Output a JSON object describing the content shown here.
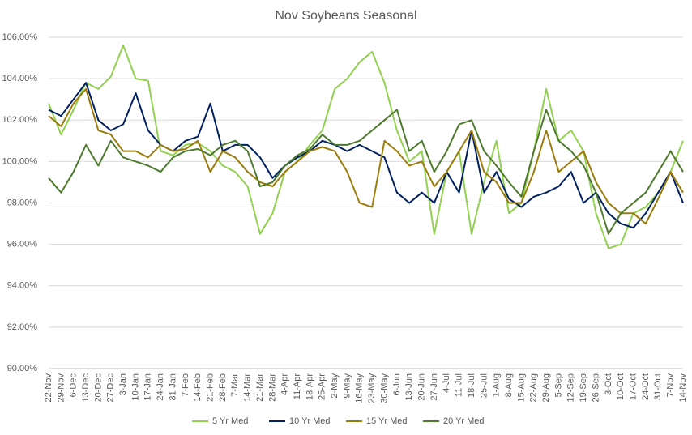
{
  "chart_data": {
    "type": "line",
    "title": "Nov Soybeans Seasonal",
    "categories": [
      "22-Nov",
      "29-Nov",
      "6-Dec",
      "13-Dec",
      "20-Dec",
      "27-Dec",
      "3-Jan",
      "10-Jan",
      "17-Jan",
      "24-Jan",
      "31-Jan",
      "7-Feb",
      "14-Feb",
      "21-Feb",
      "28-Feb",
      "7-Mar",
      "14-Mar",
      "21-Mar",
      "28-Mar",
      "4-Apr",
      "11-Apr",
      "18-Apr",
      "25-Apr",
      "2-May",
      "9-May",
      "16-May",
      "23-May",
      "30-May",
      "6-Jun",
      "13-Jun",
      "20-Jun",
      "27-Jun",
      "4-Jul",
      "11-Jul",
      "18-Jul",
      "25-Jul",
      "1-Aug",
      "8-Aug",
      "15-Aug",
      "22-Aug",
      "29-Aug",
      "5-Sep",
      "12-Sep",
      "19-Sep",
      "26-Sep",
      "3-Oct",
      "10-Oct",
      "17-Oct",
      "24-Oct",
      "31-Oct",
      "7-Nov",
      "14-Nov"
    ],
    "series": [
      {
        "name": "5 Yr Med",
        "color": "#92d050",
        "values": [
          102.8,
          101.3,
          102.5,
          103.8,
          103.5,
          104.1,
          105.6,
          104.0,
          103.9,
          100.5,
          100.3,
          100.8,
          100.9,
          100.5,
          99.8,
          99.5,
          98.8,
          96.5,
          97.5,
          99.5,
          100.0,
          100.8,
          101.5,
          103.5,
          104.0,
          104.8,
          105.3,
          103.8,
          101.5,
          100.0,
          100.5,
          96.5,
          99.5,
          100.5,
          96.5,
          99.0,
          101.0,
          97.5,
          98.0,
          100.5,
          103.5,
          101.0,
          101.5,
          100.5,
          97.5,
          95.8,
          96.0,
          97.5,
          97.8,
          98.5,
          99.5,
          101.0
        ]
      },
      {
        "name": "10 Yr Med",
        "color": "#002060",
        "values": [
          102.5,
          102.2,
          103.0,
          103.8,
          102.0,
          101.5,
          101.8,
          103.3,
          101.5,
          100.8,
          100.5,
          101.0,
          101.2,
          102.8,
          100.5,
          100.8,
          100.8,
          100.2,
          99.2,
          99.8,
          100.2,
          100.5,
          101.0,
          100.8,
          100.5,
          100.8,
          100.5,
          100.2,
          98.5,
          98.0,
          98.5,
          98.0,
          99.5,
          98.5,
          101.5,
          98.5,
          99.5,
          98.2,
          97.8,
          98.3,
          98.5,
          98.8,
          99.5,
          98.0,
          98.5,
          97.5,
          97.0,
          96.8,
          97.5,
          98.5,
          99.5,
          98.0
        ]
      },
      {
        "name": "15 Yr Med",
        "color": "#9c7c0c",
        "values": [
          102.2,
          101.7,
          102.8,
          103.5,
          101.5,
          101.3,
          100.5,
          100.5,
          100.2,
          100.8,
          100.5,
          100.6,
          101.0,
          99.5,
          100.5,
          100.2,
          99.5,
          99.0,
          98.8,
          99.5,
          100.0,
          100.5,
          100.7,
          100.5,
          99.5,
          98.0,
          97.8,
          101.0,
          100.5,
          99.8,
          100.0,
          98.8,
          99.5,
          100.5,
          101.5,
          99.5,
          99.0,
          98.0,
          98.0,
          99.5,
          101.5,
          99.5,
          100.0,
          100.5,
          99.0,
          98.0,
          97.5,
          97.5,
          97.0,
          98.2,
          99.5,
          98.5
        ]
      },
      {
        "name": "20 Yr Med",
        "color": "#4e7a2e",
        "values": [
          99.2,
          98.5,
          99.5,
          100.8,
          99.8,
          101.0,
          100.2,
          100.0,
          99.8,
          99.5,
          100.2,
          100.5,
          100.6,
          100.3,
          100.8,
          101.0,
          100.5,
          98.8,
          99.0,
          99.8,
          100.3,
          100.6,
          101.3,
          100.8,
          100.8,
          101.0,
          101.5,
          102.0,
          102.5,
          100.5,
          101.0,
          99.5,
          100.5,
          101.8,
          102.0,
          100.5,
          99.8,
          99.0,
          98.3,
          100.5,
          102.5,
          101.0,
          100.5,
          99.8,
          98.5,
          96.5,
          97.5,
          98.0,
          98.5,
          99.5,
          100.5,
          99.5
        ]
      }
    ],
    "ylim": [
      90,
      106
    ],
    "yticks": [
      {
        "value": 90,
        "label": "90.00%"
      },
      {
        "value": 92,
        "label": "92.00%"
      },
      {
        "value": 94,
        "label": "94.00%"
      },
      {
        "value": 96,
        "label": "96.00%"
      },
      {
        "value": 98,
        "label": "98.00%"
      },
      {
        "value": 100,
        "label": "100.00%"
      },
      {
        "value": 102,
        "label": "102.00%"
      },
      {
        "value": 104,
        "label": "104.00%"
      },
      {
        "value": 106,
        "label": "106.00%"
      }
    ],
    "grid": true,
    "legend": "bottom"
  }
}
